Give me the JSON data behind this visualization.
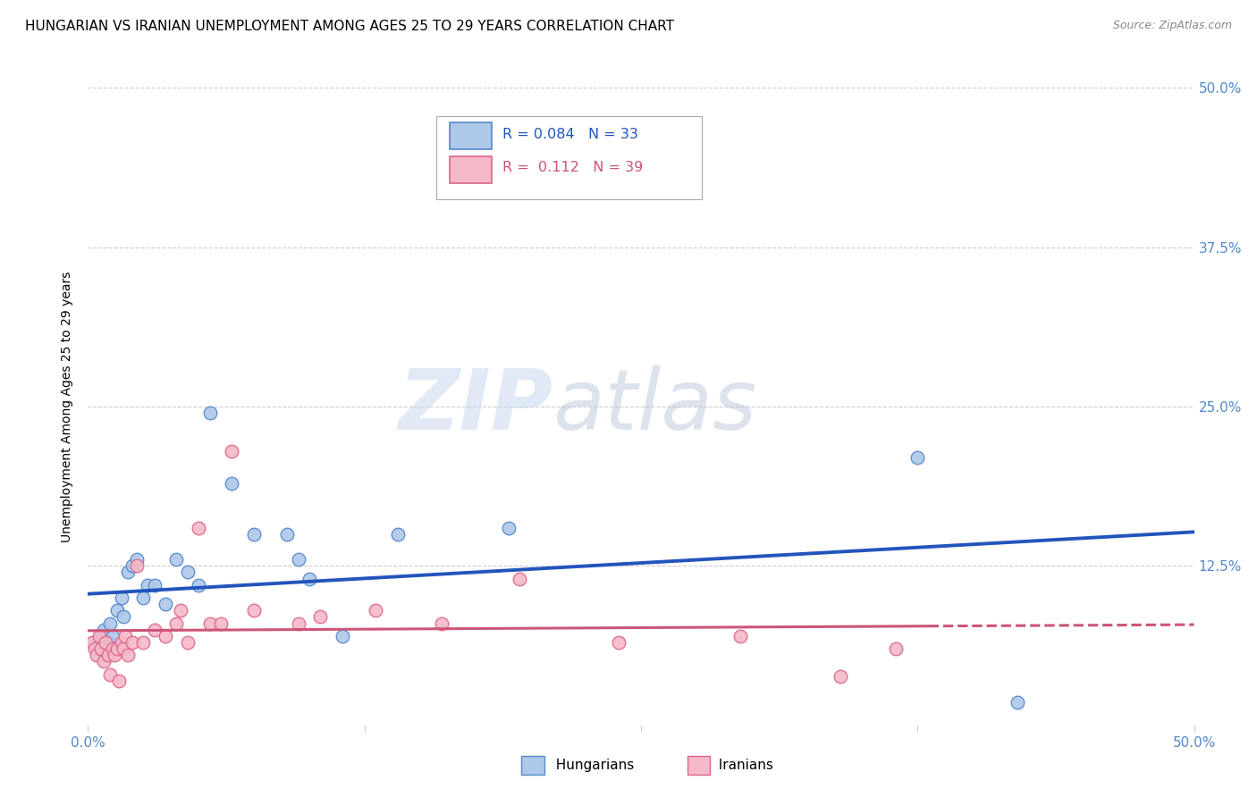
{
  "title": "HUNGARIAN VS IRANIAN UNEMPLOYMENT AMONG AGES 25 TO 29 YEARS CORRELATION CHART",
  "source": "Source: ZipAtlas.com",
  "ylabel": "Unemployment Among Ages 25 to 29 years",
  "xlim": [
    0.0,
    0.5
  ],
  "ylim": [
    0.0,
    0.5
  ],
  "xticks": [
    0.0,
    0.125,
    0.25,
    0.375,
    0.5
  ],
  "xticklabels": [
    "0.0%",
    "",
    "",
    "",
    "50.0%"
  ],
  "yticks": [
    0.0,
    0.125,
    0.25,
    0.375,
    0.5
  ],
  "yticklabels": [
    "",
    "12.5%",
    "25.0%",
    "37.5%",
    "50.0%"
  ],
  "hungarian_color": "#adc8e8",
  "iranian_color": "#f5b8c8",
  "hungarian_edge": "#5588cc",
  "iranian_edge": "#dd6688",
  "trend_hungarian_color": "#2255bb",
  "trend_iranian_color": "#cc5577",
  "legend_r_hungarian": "R = 0.084",
  "legend_n_hungarian": "N = 33",
  "legend_r_iranian": "R =  0.112",
  "legend_n_iranian": "N = 39",
  "hungarian_x": [
    0.003,
    0.005,
    0.006,
    0.007,
    0.008,
    0.009,
    0.01,
    0.011,
    0.012,
    0.013,
    0.015,
    0.016,
    0.018,
    0.02,
    0.022,
    0.025,
    0.027,
    0.03,
    0.035,
    0.04,
    0.045,
    0.05,
    0.055,
    0.065,
    0.075,
    0.09,
    0.095,
    0.1,
    0.115,
    0.14,
    0.19,
    0.375,
    0.42
  ],
  "hungarian_y": [
    0.065,
    0.06,
    0.07,
    0.075,
    0.055,
    0.065,
    0.08,
    0.07,
    0.06,
    0.09,
    0.1,
    0.085,
    0.12,
    0.125,
    0.13,
    0.1,
    0.11,
    0.11,
    0.095,
    0.13,
    0.12,
    0.11,
    0.245,
    0.19,
    0.15,
    0.15,
    0.13,
    0.115,
    0.07,
    0.15,
    0.155,
    0.21,
    0.018
  ],
  "iranian_x": [
    0.002,
    0.003,
    0.004,
    0.005,
    0.006,
    0.007,
    0.008,
    0.009,
    0.01,
    0.011,
    0.012,
    0.013,
    0.014,
    0.015,
    0.016,
    0.017,
    0.018,
    0.02,
    0.022,
    0.025,
    0.03,
    0.035,
    0.04,
    0.042,
    0.045,
    0.05,
    0.055,
    0.06,
    0.065,
    0.075,
    0.095,
    0.105,
    0.13,
    0.16,
    0.195,
    0.24,
    0.295,
    0.34,
    0.365
  ],
  "iranian_y": [
    0.065,
    0.06,
    0.055,
    0.07,
    0.06,
    0.05,
    0.065,
    0.055,
    0.04,
    0.06,
    0.055,
    0.06,
    0.035,
    0.065,
    0.06,
    0.07,
    0.055,
    0.065,
    0.125,
    0.065,
    0.075,
    0.07,
    0.08,
    0.09,
    0.065,
    0.155,
    0.08,
    0.08,
    0.215,
    0.09,
    0.08,
    0.085,
    0.09,
    0.08,
    0.115,
    0.065,
    0.07,
    0.038,
    0.06
  ],
  "watermark_zip": "ZIP",
  "watermark_atlas": "atlas",
  "background_color": "#ffffff",
  "grid_color": "#cccccc",
  "title_fontsize": 11,
  "axis_label_fontsize": 10,
  "tick_fontsize": 11,
  "tick_color": "#5588cc",
  "marker_size": 110,
  "trend_h_x0": 0.0,
  "trend_h_x1": 0.5,
  "trend_i_solid_end": 0.38,
  "trend_i_x1": 0.5
}
